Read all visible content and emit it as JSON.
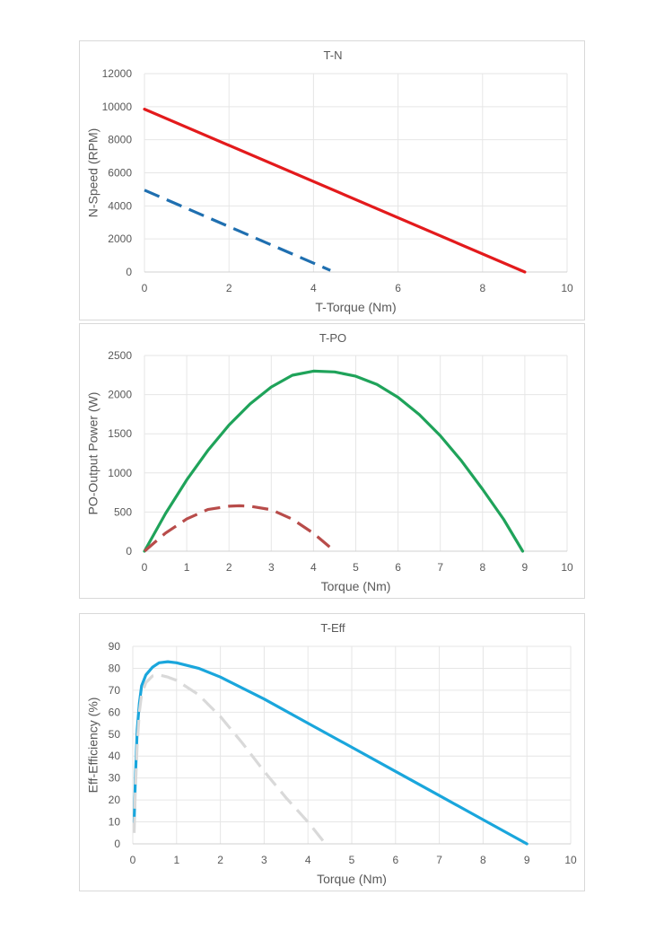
{
  "chart_data": [
    {
      "type": "line",
      "title": "T-N",
      "xlabel": "T-Torque (Nm)",
      "ylabel": "N-Speed (RPM)",
      "xlim": [
        0,
        10
      ],
      "ylim": [
        0,
        12000
      ],
      "xticks": [
        "0",
        "2",
        "4",
        "6",
        "8",
        "10"
      ],
      "yticks": [
        "0",
        "2000",
        "4000",
        "6000",
        "8000",
        "10000",
        "12000"
      ],
      "grid": true,
      "series": [
        {
          "color": "#e31a1c",
          "dashed": false,
          "x": [
            0,
            9
          ],
          "y": [
            9850,
            0
          ]
        },
        {
          "color": "#1f6fb0",
          "dashed": true,
          "x": [
            0,
            4.4
          ],
          "y": [
            4950,
            100
          ]
        }
      ]
    },
    {
      "type": "line",
      "title": "T-PO",
      "xlabel": "Torque (Nm)",
      "ylabel": "PO-Output Power (W)",
      "xlim": [
        0,
        10
      ],
      "ylim": [
        0,
        2500
      ],
      "xticks": [
        "0",
        "1",
        "2",
        "3",
        "4",
        "5",
        "6",
        "7",
        "8",
        "9",
        "10"
      ],
      "yticks": [
        "0",
        "500",
        "1000",
        "1500",
        "2000",
        "2500"
      ],
      "grid": true,
      "series": [
        {
          "color": "#1fa35a",
          "dashed": false,
          "x": [
            0,
            0.5,
            1,
            1.5,
            2,
            2.5,
            3,
            3.5,
            4,
            4.5,
            5,
            5.5,
            6,
            6.5,
            7,
            7.5,
            8,
            8.5,
            8.95
          ],
          "y": [
            0,
            482,
            910,
            1286,
            1611,
            1882,
            2097,
            2248,
            2300,
            2290,
            2235,
            2130,
            1966,
            1747,
            1475,
            1154,
            791,
            407,
            0
          ]
        },
        {
          "color": "#b84c4a",
          "dashed": true,
          "x": [
            0,
            0.5,
            1,
            1.5,
            2,
            2.25,
            2.5,
            3,
            3.5,
            4,
            4.3,
            4.5
          ],
          "y": [
            0,
            232,
            412,
            532,
            574,
            580,
            574,
            530,
            409,
            228,
            92,
            0
          ]
        }
      ]
    },
    {
      "type": "line",
      "title": "T-Eff",
      "xlabel": "Torque (Nm)",
      "ylabel": "Eff-Efficiency (%)",
      "xlim": [
        0,
        10
      ],
      "ylim": [
        0,
        90
      ],
      "xticks": [
        "0",
        "1",
        "2",
        "3",
        "4",
        "5",
        "6",
        "7",
        "8",
        "9",
        "10"
      ],
      "yticks": [
        "0",
        "10",
        "20",
        "30",
        "40",
        "50",
        "60",
        "70",
        "80",
        "90"
      ],
      "grid": true,
      "series": [
        {
          "color": "#1aa6dc",
          "dashed": false,
          "x": [
            0.03,
            0.06,
            0.1,
            0.15,
            0.2,
            0.3,
            0.45,
            0.6,
            0.8,
            1.0,
            1.5,
            2,
            3,
            4,
            5,
            6,
            7,
            8,
            9
          ],
          "y": [
            10,
            30,
            52,
            64,
            72,
            77,
            80.5,
            82.5,
            83,
            82.5,
            80,
            76,
            66,
            55,
            44,
            33,
            22,
            11,
            0
          ]
        },
        {
          "color": "#d9d9d9",
          "dashed": true,
          "x": [
            0.03,
            0.06,
            0.1,
            0.15,
            0.2,
            0.3,
            0.45,
            0.6,
            0.8,
            1.0,
            1.5,
            2,
            2.5,
            3,
            3.5,
            4,
            4.4
          ],
          "y": [
            5,
            25,
            45,
            60,
            68,
            73.5,
            76.5,
            77,
            76,
            74.5,
            68,
            58,
            46,
            33,
            21,
            10,
            0
          ]
        }
      ]
    }
  ]
}
